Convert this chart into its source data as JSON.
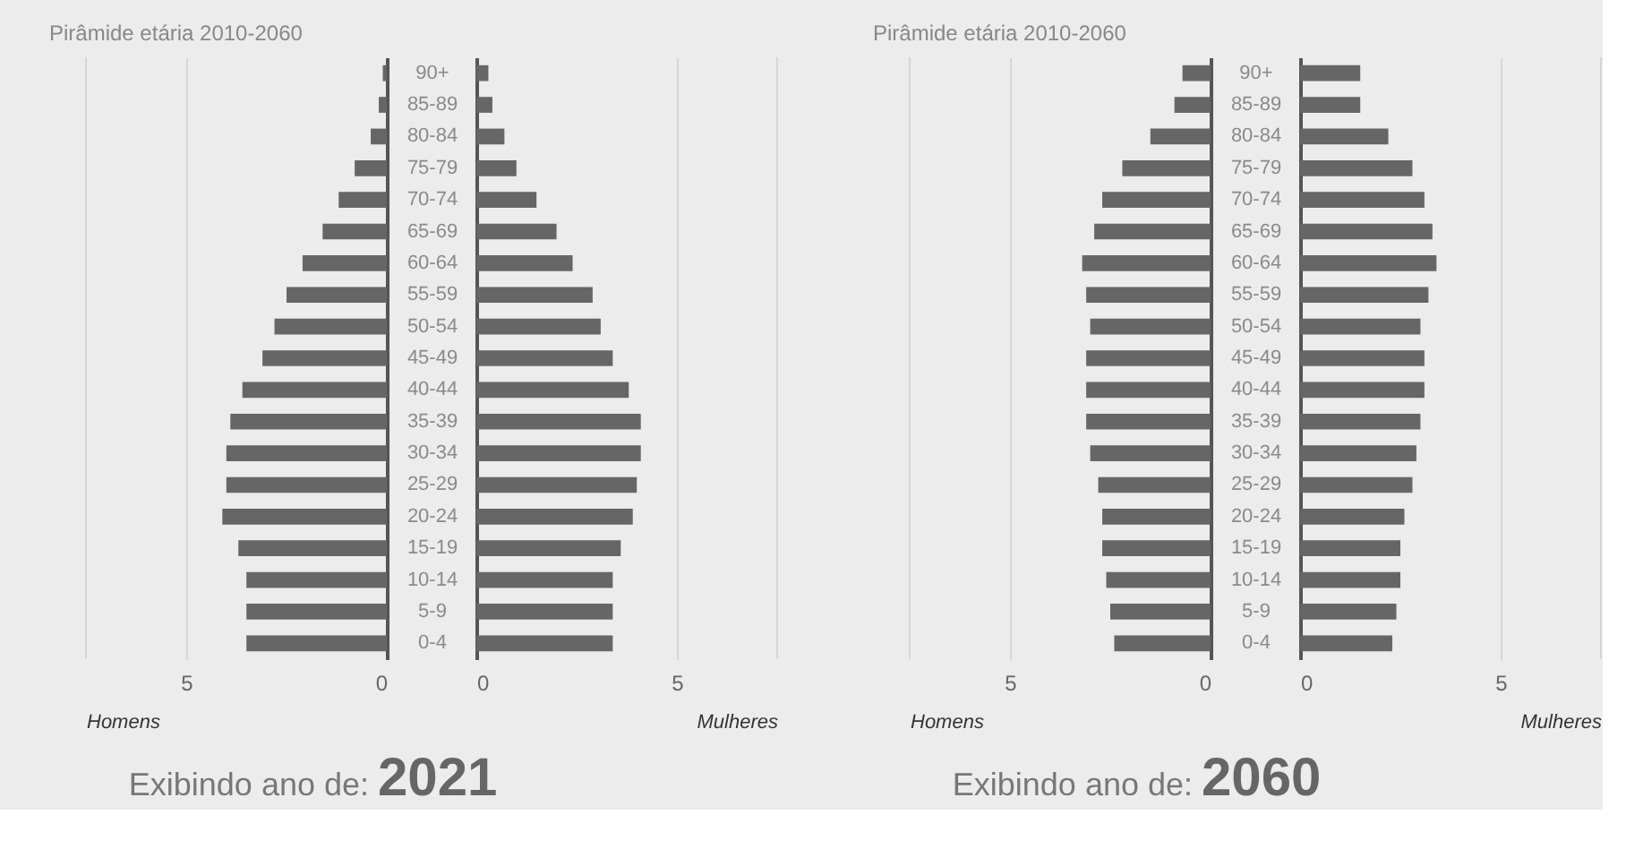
{
  "chart_data": [
    {
      "type": "bar",
      "orientation": "horizontal",
      "title": "Pirâmide etária 2010-2060",
      "xlabel": "Homens",
      "values": [
        0.1,
        0.2,
        0.4,
        0.8,
        1.2,
        1.6,
        2.1,
        2.5,
        2.8,
        3.1,
        3.6,
        3.9,
        4.0,
        4.0,
        4.1,
        3.7,
        3.5,
        3.5,
        3.5
      ],
      "color": "#666666",
      "xlim": [
        7.5,
        0
      ],
      "xticks": [
        5,
        0
      ],
      "grid": "x",
      "tick_labels": "x",
      "annotations": [
        "Exibindo ano de:",
        "2021"
      ]
    },
    {
      "type": "bar",
      "orientation": "horizontal",
      "xlabel": "Mulheres",
      "categories": [
        "90+",
        "85-89",
        "80-84",
        "75-79",
        "70-74",
        "65-69",
        "60-64",
        "55-59",
        "50-54",
        "45-49",
        "40-44",
        "35-39",
        "30-34",
        "25-29",
        "20-24",
        "15-19",
        "10-14",
        "5-9",
        "0-4"
      ],
      "values": [
        0.3,
        0.4,
        0.7,
        1.0,
        1.5,
        2.0,
        2.4,
        2.9,
        3.1,
        3.4,
        3.8,
        4.1,
        4.1,
        4.0,
        3.9,
        3.6,
        3.4,
        3.4,
        3.4
      ],
      "color": "#666666",
      "xlim": [
        0,
        7.5
      ],
      "xticks": [
        0,
        5
      ],
      "grid": "x"
    },
    {
      "type": "bar",
      "orientation": "horizontal",
      "title": "Pirâmide etária 2010-2060",
      "xlabel": "Homens",
      "values": [
        0.7,
        0.9,
        1.5,
        2.2,
        2.7,
        2.9,
        3.2,
        3.1,
        3.0,
        3.1,
        3.1,
        3.1,
        3.0,
        2.8,
        2.7,
        2.7,
        2.6,
        2.5,
        2.4
      ],
      "color": "#666666",
      "xlim": [
        7.5,
        0
      ],
      "xticks": [
        5,
        0
      ],
      "grid": "x",
      "tick_labels": "x",
      "annotations": [
        "Exibindo ano de:",
        "2060"
      ]
    },
    {
      "type": "bar",
      "orientation": "horizontal",
      "xlabel": "Mulheres",
      "categories": [
        "90+",
        "85-89",
        "80-84",
        "75-79",
        "70-74",
        "65-69",
        "60-64",
        "55-59",
        "50-54",
        "45-49",
        "40-44",
        "35-39",
        "30-34",
        "25-29",
        "20-24",
        "15-19",
        "10-14",
        "5-9",
        "0-4"
      ],
      "values": [
        1.5,
        1.5,
        2.2,
        2.8,
        3.1,
        3.3,
        3.4,
        3.2,
        3.0,
        3.1,
        3.1,
        3.0,
        2.9,
        2.8,
        2.6,
        2.5,
        2.5,
        2.4,
        2.3
      ],
      "color": "#666666",
      "xlim": [
        0,
        7.5
      ],
      "xticks": [
        0,
        5
      ],
      "grid": "x"
    }
  ]
}
